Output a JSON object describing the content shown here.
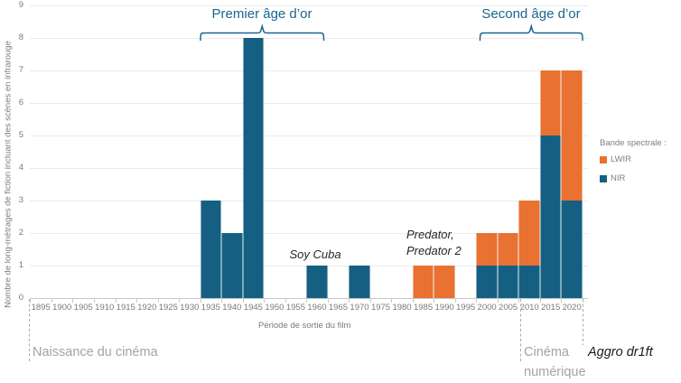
{
  "colors": {
    "nir": "#156082",
    "lwir": "#E97132",
    "era_accent": "#1B6490"
  },
  "chart_data": {
    "type": "bar",
    "stacked": true,
    "grid": true,
    "legend_position": "right",
    "legend_title": "Bande spectrale :",
    "xlabel": "Période de sortie du film",
    "ylabel": "Nombre de long-métrages de fiction incluant des scènes en infrarouge",
    "ylim": [
      0,
      9
    ],
    "yticks": [
      0,
      1,
      2,
      3,
      4,
      5,
      6,
      7,
      8,
      9
    ],
    "categories": [
      "1895",
      "1900",
      "1905",
      "1910",
      "1915",
      "1920",
      "1925",
      "1930",
      "1935",
      "1940",
      "1945",
      "1950",
      "1955",
      "1960",
      "1965",
      "1970",
      "1975",
      "1980",
      "1985",
      "1990",
      "1995",
      "2000",
      "2005",
      "2010",
      "2015",
      "2020"
    ],
    "series": [
      {
        "name": "LWIR",
        "color": "#E97132",
        "values": [
          0,
          0,
          0,
          0,
          0,
          0,
          0,
          0,
          0,
          0,
          0,
          0,
          0,
          0,
          0,
          0,
          0,
          0,
          1,
          1,
          0,
          1,
          1,
          2,
          2,
          4
        ]
      },
      {
        "name": "NIR",
        "color": "#156082",
        "values": [
          0,
          0,
          0,
          0,
          0,
          0,
          0,
          0,
          3,
          2,
          8,
          0,
          0,
          1,
          0,
          1,
          0,
          0,
          0,
          0,
          0,
          1,
          1,
          1,
          5,
          3
        ]
      }
    ]
  },
  "eras": [
    {
      "label": "Premier âge d’or"
    },
    {
      "label": "Second âge d’or"
    }
  ],
  "film_annotations": [
    {
      "id": "soy-cuba",
      "lines": [
        "Soy Cuba"
      ]
    },
    {
      "id": "predator",
      "lines": [
        "Predator,",
        "Predator 2"
      ]
    }
  ],
  "timeline_markers": [
    {
      "id": "naissance",
      "lines": [
        "Naissance du cinéma"
      ]
    },
    {
      "id": "cinema-numerique",
      "lines": [
        "Cinéma",
        "numérique"
      ]
    },
    {
      "id": "aggro-dr1ft",
      "lines": [
        "Aggro dr1ft"
      ]
    }
  ]
}
